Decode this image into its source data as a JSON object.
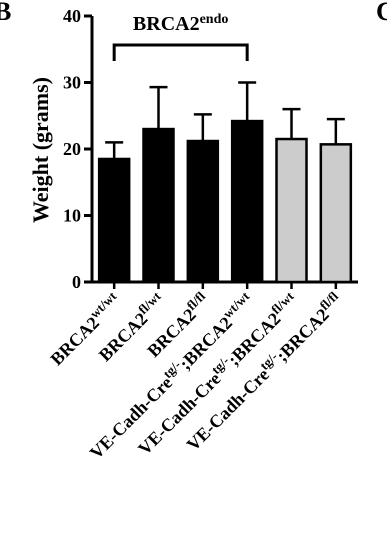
{
  "panel_letter_left": "B",
  "panel_letter_right": "C",
  "chart_data": {
    "type": "bar",
    "title": "",
    "ylabel": "Weight (grams)",
    "ylim": [
      0,
      40
    ],
    "yticks": [
      "0",
      "10",
      "20",
      "30",
      "40"
    ],
    "ytick_values": [
      0,
      10,
      20,
      30,
      40
    ],
    "bracket_label": {
      "base": "BRCA2",
      "sup": "endo"
    },
    "bracket_span": [
      0,
      3
    ],
    "categories": [
      {
        "prefix": "",
        "gene": "BRCA2",
        "sup": "wt/wt"
      },
      {
        "prefix": "",
        "gene": "BRCA2",
        "sup": "fl/wt"
      },
      {
        "prefix": "",
        "gene": "BRCA2",
        "sup": "fl/fl"
      },
      {
        "prefix": "VE-Cadh-Cre",
        "prefix_sup": "tg/-",
        "gene": ";BRCA2",
        "sup": "wt/wt"
      },
      {
        "prefix": "VE-Cadh-Cre",
        "prefix_sup": "tg/-",
        "gene": ";BRCA2",
        "sup": "fl/wt"
      },
      {
        "prefix": "VE-Cadh-Cre",
        "prefix_sup": "tg/-",
        "gene": ";BRCA2",
        "sup": "fl/fl"
      }
    ],
    "values": [
      18.5,
      23,
      21.2,
      24.2,
      21.5,
      20.7
    ],
    "errors": [
      2.5,
      6.3,
      4.0,
      5.8,
      4.5,
      3.8
    ],
    "bar_colors": [
      "#000000",
      "#000000",
      "#000000",
      "#000000",
      "#cccccc",
      "#cccccc"
    ],
    "grid": false,
    "legend": "none"
  }
}
